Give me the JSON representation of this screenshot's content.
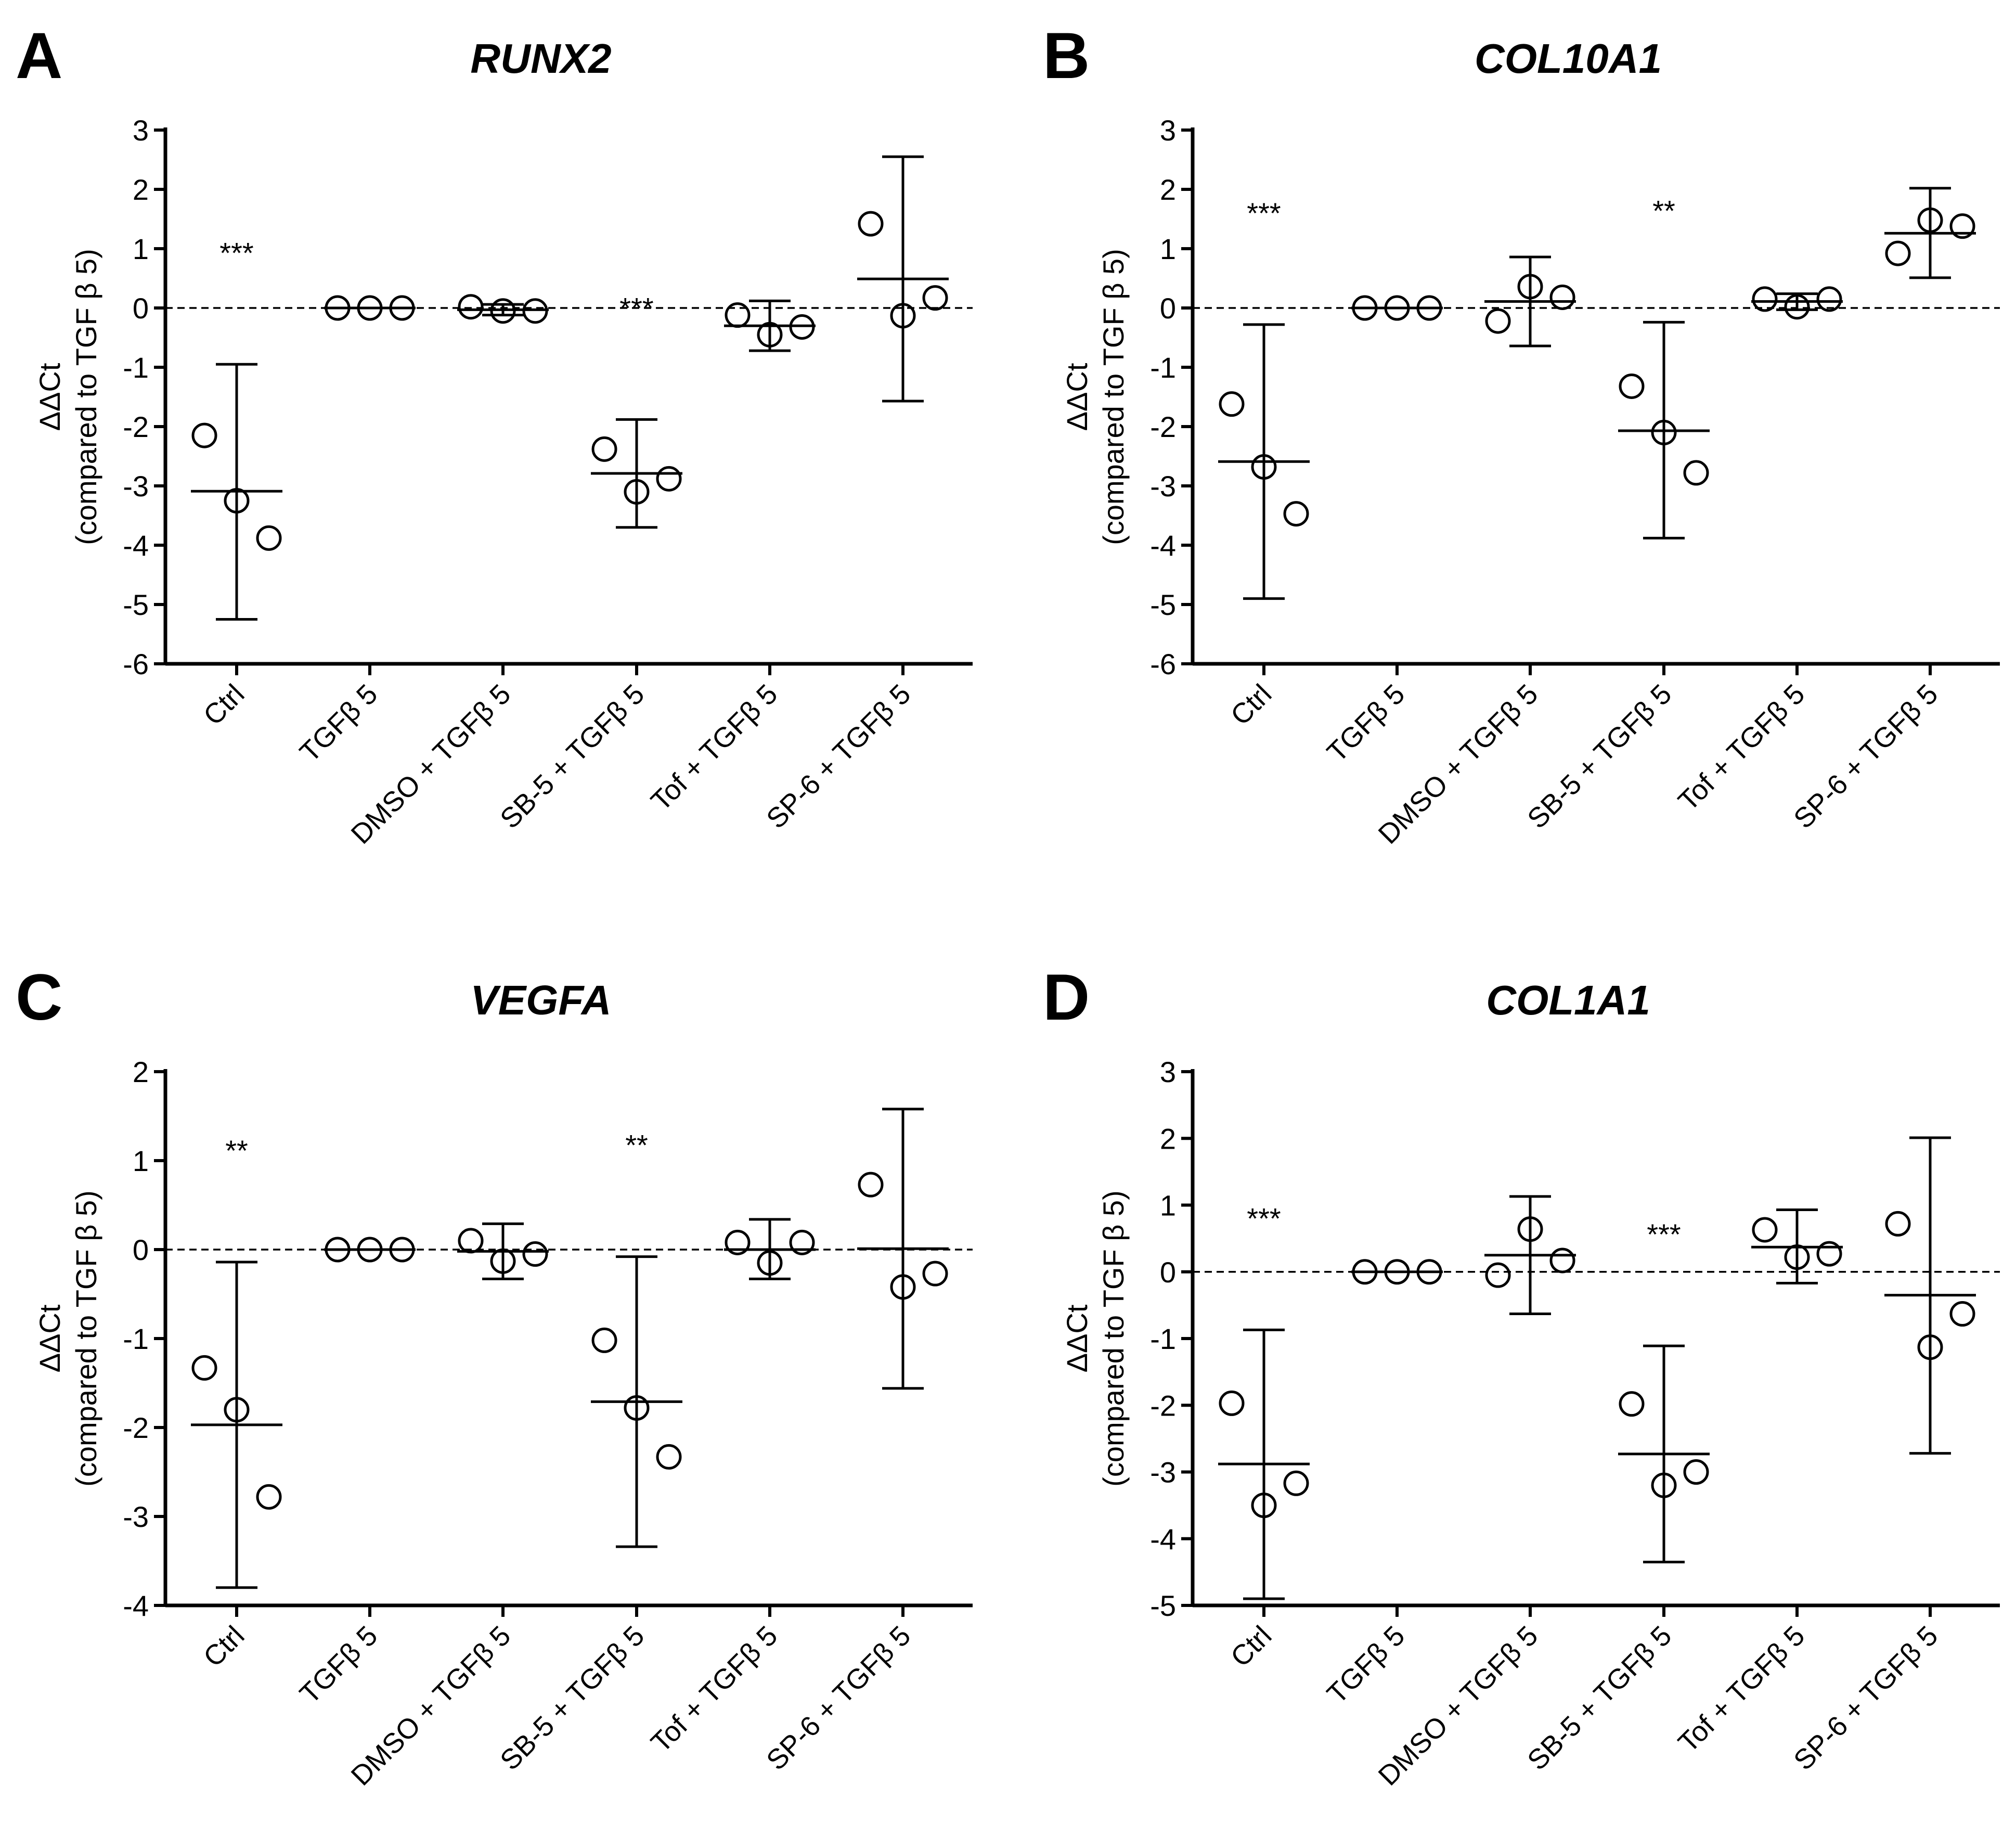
{
  "chart_data": [
    {
      "type": "scatter",
      "panel": "A",
      "title": "RUNX2",
      "ylabel": [
        "ΔΔCt",
        "(compared to TGF β 5)"
      ],
      "ylim": [
        -6,
        3
      ],
      "yticks": [
        3,
        2,
        1,
        0,
        -1,
        -2,
        -3,
        -4,
        -5,
        -6
      ],
      "categories": [
        "Ctrl",
        "TGFβ 5",
        "DMSO + TGFβ 5",
        "SB-5 + TGFβ 5",
        "Tof + TGFβ 5",
        "SP-6 + TGFβ 5"
      ],
      "groups": [
        {
          "points": [
            -2.15,
            -3.25,
            -3.88
          ],
          "mean": -3.09,
          "sd_low": -5.25,
          "sd_high": -0.95,
          "sig": "***"
        },
        {
          "points": [
            0,
            0,
            0
          ],
          "mean": 0,
          "sd_low": 0,
          "sd_high": 0,
          "sig": ""
        },
        {
          "points": [
            0.02,
            -0.05,
            -0.05
          ],
          "mean": -0.03,
          "sd_low": -0.12,
          "sd_high": 0.06,
          "sig": ""
        },
        {
          "points": [
            -2.38,
            -3.1,
            -2.88
          ],
          "mean": -2.79,
          "sd_low": -3.7,
          "sd_high": -1.88,
          "sig": "***"
        },
        {
          "points": [
            -0.12,
            -0.45,
            -0.32
          ],
          "mean": -0.3,
          "sd_low": -0.72,
          "sd_high": 0.12,
          "sig": ""
        },
        {
          "points": [
            1.42,
            -0.13,
            0.17
          ],
          "mean": 0.49,
          "sd_low": -1.57,
          "sd_high": 2.55,
          "sig": ""
        }
      ]
    },
    {
      "type": "scatter",
      "panel": "B",
      "title": "COL10A1",
      "ylabel": [
        "ΔΔCt",
        "(compared to TGF β 5)"
      ],
      "ylim": [
        -6,
        3
      ],
      "yticks": [
        3,
        2,
        1,
        0,
        -1,
        -2,
        -3,
        -4,
        -5,
        -6
      ],
      "categories": [
        "Ctrl",
        "TGFβ 5",
        "DMSO + TGFβ 5",
        "SB-5 + TGFβ 5",
        "Tof + TGFβ 5",
        "SP-6 + TGFβ 5"
      ],
      "groups": [
        {
          "points": [
            -1.62,
            -2.68,
            -3.47
          ],
          "mean": -2.59,
          "sd_low": -4.9,
          "sd_high": -0.28,
          "sig": "***"
        },
        {
          "points": [
            0,
            0,
            0
          ],
          "mean": 0,
          "sd_low": 0,
          "sd_high": 0,
          "sig": ""
        },
        {
          "points": [
            -0.22,
            0.36,
            0.18
          ],
          "mean": 0.11,
          "sd_low": -0.64,
          "sd_high": 0.86,
          "sig": ""
        },
        {
          "points": [
            -1.32,
            -2.1,
            -2.78
          ],
          "mean": -2.07,
          "sd_low": -3.88,
          "sd_high": -0.24,
          "sig": "**"
        },
        {
          "points": [
            0.15,
            0.02,
            0.15
          ],
          "mean": 0.11,
          "sd_low": -0.03,
          "sd_high": 0.24,
          "sig": ""
        },
        {
          "points": [
            0.92,
            1.48,
            1.38
          ],
          "mean": 1.26,
          "sd_low": 0.51,
          "sd_high": 2.02,
          "sig": ""
        }
      ]
    },
    {
      "type": "scatter",
      "panel": "C",
      "title": "VEGFA",
      "ylabel": [
        "ΔΔCt",
        "(compared to TGF β 5)"
      ],
      "ylim": [
        -4,
        2
      ],
      "yticks": [
        2,
        1,
        0,
        -1,
        -2,
        -3,
        -4
      ],
      "categories": [
        "Ctrl",
        "TGFβ 5",
        "DMSO + TGFβ 5",
        "SB-5 + TGFβ 5",
        "Tof + TGFβ 5",
        "SP-6 + TGFβ 5"
      ],
      "groups": [
        {
          "points": [
            -1.33,
            -1.8,
            -2.78
          ],
          "mean": -1.97,
          "sd_low": -3.8,
          "sd_high": -0.14,
          "sig": "**"
        },
        {
          "points": [
            0,
            0,
            0
          ],
          "mean": 0,
          "sd_low": 0,
          "sd_high": 0,
          "sig": ""
        },
        {
          "points": [
            0.1,
            -0.13,
            -0.05
          ],
          "mean": -0.02,
          "sd_low": -0.33,
          "sd_high": 0.29,
          "sig": ""
        },
        {
          "points": [
            -1.02,
            -1.78,
            -2.33
          ],
          "mean": -1.71,
          "sd_low": -3.34,
          "sd_high": -0.08,
          "sig": "**"
        },
        {
          "points": [
            0.08,
            -0.15,
            0.08
          ],
          "mean": 0.0,
          "sd_low": -0.33,
          "sd_high": 0.34,
          "sig": ""
        },
        {
          "points": [
            0.73,
            -0.42,
            -0.27
          ],
          "mean": 0.01,
          "sd_low": -1.56,
          "sd_high": 1.58,
          "sig": ""
        }
      ]
    },
    {
      "type": "scatter",
      "panel": "D",
      "title": "COL1A1",
      "ylabel": [
        "ΔΔCt",
        "(compared to TGF β 5)"
      ],
      "ylim": [
        -5,
        3
      ],
      "yticks": [
        3,
        2,
        1,
        0,
        -1,
        -2,
        -3,
        -4,
        -5
      ],
      "categories": [
        "Ctrl",
        "TGFβ 5",
        "DMSO + TGFβ 5",
        "SB-5 + TGFβ 5",
        "Tof + TGFβ 5",
        "SP-6 + TGFβ 5"
      ],
      "groups": [
        {
          "points": [
            -1.97,
            -3.5,
            -3.17
          ],
          "mean": -2.88,
          "sd_low": -4.9,
          "sd_high": -0.87,
          "sig": "***"
        },
        {
          "points": [
            0,
            0,
            0
          ],
          "mean": 0,
          "sd_low": 0,
          "sd_high": 0,
          "sig": ""
        },
        {
          "points": [
            -0.05,
            0.64,
            0.17
          ],
          "mean": 0.25,
          "sd_low": -0.63,
          "sd_high": 1.13,
          "sig": ""
        },
        {
          "points": [
            -1.98,
            -3.2,
            -3.0
          ],
          "mean": -2.73,
          "sd_low": -4.35,
          "sd_high": -1.11,
          "sig": "***"
        },
        {
          "points": [
            0.63,
            0.22,
            0.27
          ],
          "mean": 0.37,
          "sd_low": -0.17,
          "sd_high": 0.93,
          "sig": ""
        },
        {
          "points": [
            0.72,
            -1.13,
            -0.63
          ],
          "mean": -0.35,
          "sd_low": -2.72,
          "sd_high": 2.01,
          "sig": ""
        }
      ]
    }
  ]
}
